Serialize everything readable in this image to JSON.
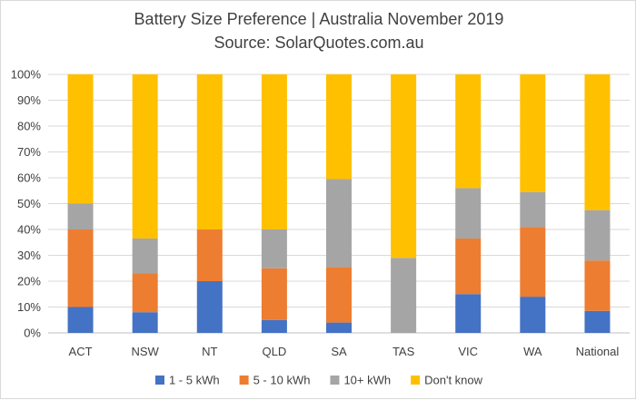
{
  "chart_data": {
    "type": "bar",
    "stacked": true,
    "title": "Battery Size Preference  | Australia November 2019",
    "subtitle": "Source: SolarQuotes.com.au",
    "categories": [
      "ACT",
      "NSW",
      "NT",
      "QLD",
      "SA",
      "TAS",
      "VIC",
      "WA",
      "National"
    ],
    "series": [
      {
        "name": "1 - 5 kWh",
        "color": "#4472c4",
        "values": [
          10,
          8,
          20,
          5,
          4,
          0,
          15,
          14,
          8.5
        ]
      },
      {
        "name": "5 - 10 kWh",
        "color": "#ed7d31",
        "values": [
          30,
          15,
          20,
          20,
          21.5,
          0,
          21.5,
          27,
          19.5
        ]
      },
      {
        "name": "10+ kWh",
        "color": "#a5a5a5",
        "values": [
          10,
          13.5,
          0,
          15,
          34,
          29,
          19.5,
          13.5,
          19.5
        ]
      },
      {
        "name": "Don't know",
        "color": "#ffc000",
        "values": [
          50,
          63.5,
          60,
          60,
          40.5,
          71,
          44,
          45.5,
          52.5
        ]
      }
    ],
    "ylim": [
      0,
      100
    ],
    "yticks": [
      "0%",
      "10%",
      "20%",
      "30%",
      "40%",
      "50%",
      "60%",
      "70%",
      "80%",
      "90%",
      "100%"
    ],
    "grid": true,
    "legend": "bottom",
    "gridColor": "#d9d9d9"
  }
}
